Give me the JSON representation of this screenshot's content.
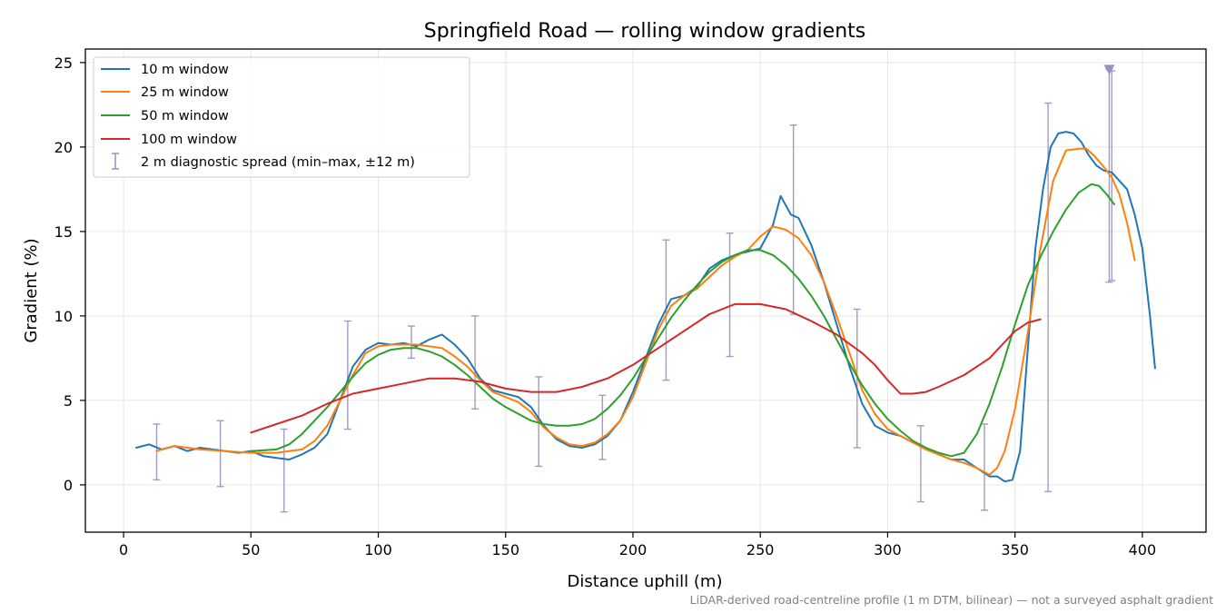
{
  "chart_data": {
    "type": "line",
    "title": "Springfield Road — rolling window gradients",
    "xlabel": "Distance uphill (m)",
    "ylabel": "Gradient (%)",
    "xlim": [
      -15,
      425
    ],
    "ylim": [
      -2.8,
      25.8
    ],
    "xticks": [
      0,
      50,
      100,
      150,
      200,
      250,
      300,
      350,
      400
    ],
    "yticks": [
      0,
      5,
      10,
      15,
      20,
      25
    ],
    "grid": true,
    "legend_position": "top-left",
    "footnote": "LiDAR-derived road-centreline profile (1 m DTM, bilinear) — not a surveyed asphalt gradient",
    "series": [
      {
        "name": "10 m window",
        "color": "#1f77b4",
        "points": [
          [
            5,
            2.2
          ],
          [
            10,
            2.4
          ],
          [
            15,
            2.1
          ],
          [
            20,
            2.3
          ],
          [
            25,
            2.0
          ],
          [
            30,
            2.2
          ],
          [
            35,
            2.1
          ],
          [
            40,
            2.0
          ],
          [
            45,
            1.9
          ],
          [
            50,
            2.0
          ],
          [
            55,
            1.7
          ],
          [
            60,
            1.6
          ],
          [
            65,
            1.5
          ],
          [
            70,
            1.8
          ],
          [
            75,
            2.2
          ],
          [
            80,
            3.0
          ],
          [
            85,
            5.0
          ],
          [
            90,
            7.0
          ],
          [
            95,
            8.0
          ],
          [
            100,
            8.4
          ],
          [
            105,
            8.3
          ],
          [
            110,
            8.4
          ],
          [
            115,
            8.2
          ],
          [
            120,
            8.6
          ],
          [
            125,
            8.9
          ],
          [
            130,
            8.3
          ],
          [
            135,
            7.5
          ],
          [
            140,
            6.3
          ],
          [
            145,
            5.6
          ],
          [
            150,
            5.4
          ],
          [
            155,
            5.2
          ],
          [
            160,
            4.6
          ],
          [
            165,
            3.5
          ],
          [
            170,
            2.7
          ],
          [
            175,
            2.3
          ],
          [
            180,
            2.2
          ],
          [
            185,
            2.4
          ],
          [
            190,
            2.9
          ],
          [
            195,
            3.8
          ],
          [
            200,
            5.5
          ],
          [
            205,
            7.5
          ],
          [
            210,
            9.5
          ],
          [
            215,
            11.0
          ],
          [
            220,
            11.2
          ],
          [
            225,
            11.7
          ],
          [
            230,
            12.8
          ],
          [
            235,
            13.3
          ],
          [
            240,
            13.6
          ],
          [
            245,
            13.8
          ],
          [
            250,
            14.0
          ],
          [
            255,
            15.4
          ],
          [
            258,
            17.1
          ],
          [
            262,
            16.0
          ],
          [
            265,
            15.8
          ],
          [
            270,
            14.2
          ],
          [
            275,
            12.0
          ],
          [
            280,
            9.5
          ],
          [
            285,
            7.0
          ],
          [
            290,
            4.8
          ],
          [
            295,
            3.5
          ],
          [
            300,
            3.1
          ],
          [
            305,
            2.9
          ],
          [
            310,
            2.5
          ],
          [
            315,
            2.2
          ],
          [
            320,
            1.8
          ],
          [
            325,
            1.5
          ],
          [
            330,
            1.5
          ],
          [
            335,
            1.0
          ],
          [
            340,
            0.5
          ],
          [
            343,
            0.5
          ],
          [
            346,
            0.2
          ],
          [
            349,
            0.3
          ],
          [
            352,
            2.0
          ],
          [
            355,
            8.0
          ],
          [
            358,
            14.0
          ],
          [
            361,
            17.5
          ],
          [
            364,
            20.0
          ],
          [
            367,
            20.8
          ],
          [
            370,
            20.9
          ],
          [
            373,
            20.8
          ],
          [
            376,
            20.3
          ],
          [
            379,
            19.5
          ],
          [
            382,
            18.9
          ],
          [
            385,
            18.6
          ],
          [
            388,
            18.5
          ],
          [
            391,
            18.0
          ],
          [
            394,
            17.5
          ],
          [
            397,
            16.0
          ],
          [
            400,
            14.0
          ],
          [
            403,
            10.0
          ],
          [
            405,
            6.9
          ]
        ]
      },
      {
        "name": "25 m window",
        "color": "#ff7f0e",
        "points": [
          [
            13,
            2.0
          ],
          [
            20,
            2.3
          ],
          [
            30,
            2.1
          ],
          [
            40,
            2.0
          ],
          [
            50,
            1.9
          ],
          [
            60,
            1.9
          ],
          [
            70,
            2.1
          ],
          [
            75,
            2.6
          ],
          [
            80,
            3.5
          ],
          [
            85,
            5.0
          ],
          [
            90,
            6.5
          ],
          [
            95,
            7.8
          ],
          [
            100,
            8.2
          ],
          [
            105,
            8.3
          ],
          [
            110,
            8.3
          ],
          [
            115,
            8.3
          ],
          [
            120,
            8.2
          ],
          [
            125,
            8.1
          ],
          [
            130,
            7.6
          ],
          [
            135,
            7.0
          ],
          [
            140,
            6.2
          ],
          [
            145,
            5.5
          ],
          [
            150,
            5.2
          ],
          [
            155,
            4.9
          ],
          [
            160,
            4.3
          ],
          [
            165,
            3.4
          ],
          [
            170,
            2.8
          ],
          [
            175,
            2.4
          ],
          [
            180,
            2.3
          ],
          [
            185,
            2.5
          ],
          [
            190,
            3.0
          ],
          [
            195,
            3.8
          ],
          [
            200,
            5.2
          ],
          [
            205,
            7.2
          ],
          [
            210,
            9.2
          ],
          [
            215,
            10.6
          ],
          [
            220,
            11.2
          ],
          [
            225,
            11.6
          ],
          [
            230,
            12.3
          ],
          [
            235,
            13.0
          ],
          [
            240,
            13.5
          ],
          [
            245,
            13.9
          ],
          [
            250,
            14.7
          ],
          [
            255,
            15.3
          ],
          [
            260,
            15.1
          ],
          [
            265,
            14.6
          ],
          [
            270,
            13.6
          ],
          [
            275,
            12.0
          ],
          [
            280,
            10.0
          ],
          [
            285,
            7.8
          ],
          [
            290,
            5.6
          ],
          [
            295,
            4.2
          ],
          [
            300,
            3.3
          ],
          [
            305,
            2.9
          ],
          [
            310,
            2.5
          ],
          [
            315,
            2.1
          ],
          [
            320,
            1.8
          ],
          [
            325,
            1.5
          ],
          [
            330,
            1.3
          ],
          [
            335,
            1.0
          ],
          [
            340,
            0.6
          ],
          [
            343,
            1.0
          ],
          [
            346,
            2.0
          ],
          [
            350,
            4.5
          ],
          [
            355,
            9.0
          ],
          [
            360,
            14.0
          ],
          [
            365,
            18.0
          ],
          [
            370,
            19.8
          ],
          [
            375,
            19.9
          ],
          [
            378,
            19.9
          ],
          [
            381,
            19.5
          ],
          [
            385,
            18.8
          ],
          [
            388,
            18.2
          ],
          [
            391,
            17.2
          ],
          [
            394,
            15.5
          ],
          [
            397,
            13.3
          ]
        ]
      },
      {
        "name": "50 m window",
        "color": "#2ca02c",
        "points": [
          [
            50,
            2.0
          ],
          [
            60,
            2.1
          ],
          [
            65,
            2.4
          ],
          [
            70,
            3.0
          ],
          [
            75,
            3.8
          ],
          [
            80,
            4.6
          ],
          [
            85,
            5.5
          ],
          [
            90,
            6.4
          ],
          [
            95,
            7.2
          ],
          [
            100,
            7.7
          ],
          [
            105,
            8.0
          ],
          [
            110,
            8.1
          ],
          [
            115,
            8.1
          ],
          [
            120,
            7.9
          ],
          [
            125,
            7.6
          ],
          [
            130,
            7.1
          ],
          [
            135,
            6.5
          ],
          [
            140,
            5.8
          ],
          [
            145,
            5.1
          ],
          [
            150,
            4.6
          ],
          [
            155,
            4.2
          ],
          [
            160,
            3.8
          ],
          [
            165,
            3.6
          ],
          [
            170,
            3.5
          ],
          [
            175,
            3.5
          ],
          [
            180,
            3.6
          ],
          [
            185,
            3.9
          ],
          [
            190,
            4.5
          ],
          [
            195,
            5.3
          ],
          [
            200,
            6.3
          ],
          [
            205,
            7.5
          ],
          [
            210,
            8.7
          ],
          [
            215,
            9.9
          ],
          [
            220,
            10.9
          ],
          [
            225,
            11.8
          ],
          [
            230,
            12.6
          ],
          [
            235,
            13.2
          ],
          [
            240,
            13.6
          ],
          [
            245,
            13.9
          ],
          [
            250,
            13.9
          ],
          [
            255,
            13.6
          ],
          [
            260,
            13.0
          ],
          [
            265,
            12.2
          ],
          [
            270,
            11.2
          ],
          [
            275,
            10.0
          ],
          [
            280,
            8.6
          ],
          [
            285,
            7.2
          ],
          [
            290,
            5.9
          ],
          [
            295,
            4.8
          ],
          [
            300,
            3.9
          ],
          [
            305,
            3.2
          ],
          [
            310,
            2.6
          ],
          [
            315,
            2.2
          ],
          [
            320,
            1.9
          ],
          [
            325,
            1.7
          ],
          [
            330,
            1.9
          ],
          [
            335,
            3.0
          ],
          [
            340,
            4.8
          ],
          [
            345,
            7.0
          ],
          [
            350,
            9.5
          ],
          [
            355,
            11.8
          ],
          [
            360,
            13.5
          ],
          [
            365,
            15.0
          ],
          [
            370,
            16.3
          ],
          [
            375,
            17.3
          ],
          [
            380,
            17.8
          ],
          [
            383,
            17.7
          ],
          [
            386,
            17.2
          ],
          [
            389,
            16.6
          ]
        ]
      },
      {
        "name": "100 m window",
        "color": "#d62728",
        "points": [
          [
            50,
            3.1
          ],
          [
            60,
            3.6
          ],
          [
            70,
            4.1
          ],
          [
            80,
            4.8
          ],
          [
            90,
            5.4
          ],
          [
            100,
            5.7
          ],
          [
            110,
            6.0
          ],
          [
            120,
            6.3
          ],
          [
            130,
            6.3
          ],
          [
            140,
            6.1
          ],
          [
            150,
            5.7
          ],
          [
            160,
            5.5
          ],
          [
            170,
            5.5
          ],
          [
            180,
            5.8
          ],
          [
            190,
            6.3
          ],
          [
            200,
            7.1
          ],
          [
            210,
            8.1
          ],
          [
            220,
            9.1
          ],
          [
            230,
            10.1
          ],
          [
            240,
            10.7
          ],
          [
            250,
            10.7
          ],
          [
            260,
            10.4
          ],
          [
            270,
            9.7
          ],
          [
            280,
            8.9
          ],
          [
            290,
            7.8
          ],
          [
            295,
            7.1
          ],
          [
            300,
            6.2
          ],
          [
            305,
            5.4
          ],
          [
            310,
            5.4
          ],
          [
            315,
            5.5
          ],
          [
            320,
            5.8
          ],
          [
            330,
            6.5
          ],
          [
            340,
            7.5
          ],
          [
            345,
            8.3
          ],
          [
            350,
            9.1
          ],
          [
            355,
            9.6
          ],
          [
            360,
            9.8
          ]
        ]
      }
    ],
    "error_bars": {
      "name": "2 m diagnostic spread (min–max, ±12 m)",
      "color": "#9b8fbd",
      "bars": [
        {
          "x": 13,
          "low": 0.3,
          "high": 3.6
        },
        {
          "x": 38,
          "low": -0.1,
          "high": 3.8
        },
        {
          "x": 63,
          "low": -1.6,
          "high": 3.3
        },
        {
          "x": 88,
          "low": 3.3,
          "high": 9.7
        },
        {
          "x": 113,
          "low": 7.5,
          "high": 9.4
        },
        {
          "x": 138,
          "low": 4.5,
          "high": 10.0
        },
        {
          "x": 163,
          "low": 1.1,
          "high": 6.4
        },
        {
          "x": 188,
          "low": 1.5,
          "high": 5.3
        },
        {
          "x": 213,
          "low": 6.2,
          "high": 14.5
        },
        {
          "x": 238,
          "low": 7.6,
          "high": 14.9
        },
        {
          "x": 263,
          "low": 10.1,
          "high": 21.3
        },
        {
          "x": 288,
          "low": 2.2,
          "high": 10.4
        },
        {
          "x": 313,
          "low": -1.0,
          "high": 3.5
        },
        {
          "x": 338,
          "low": -1.5,
          "high": 3.6
        },
        {
          "x": 363,
          "low": -0.4,
          "high": 22.6
        },
        {
          "x": 387,
          "low": 12.0,
          "high": 24.6
        },
        {
          "x": 388,
          "low": 12.1,
          "high": 24.5
        }
      ],
      "marker": {
        "x": 387,
        "y": 24.6,
        "shape": "triangle-down"
      }
    }
  }
}
